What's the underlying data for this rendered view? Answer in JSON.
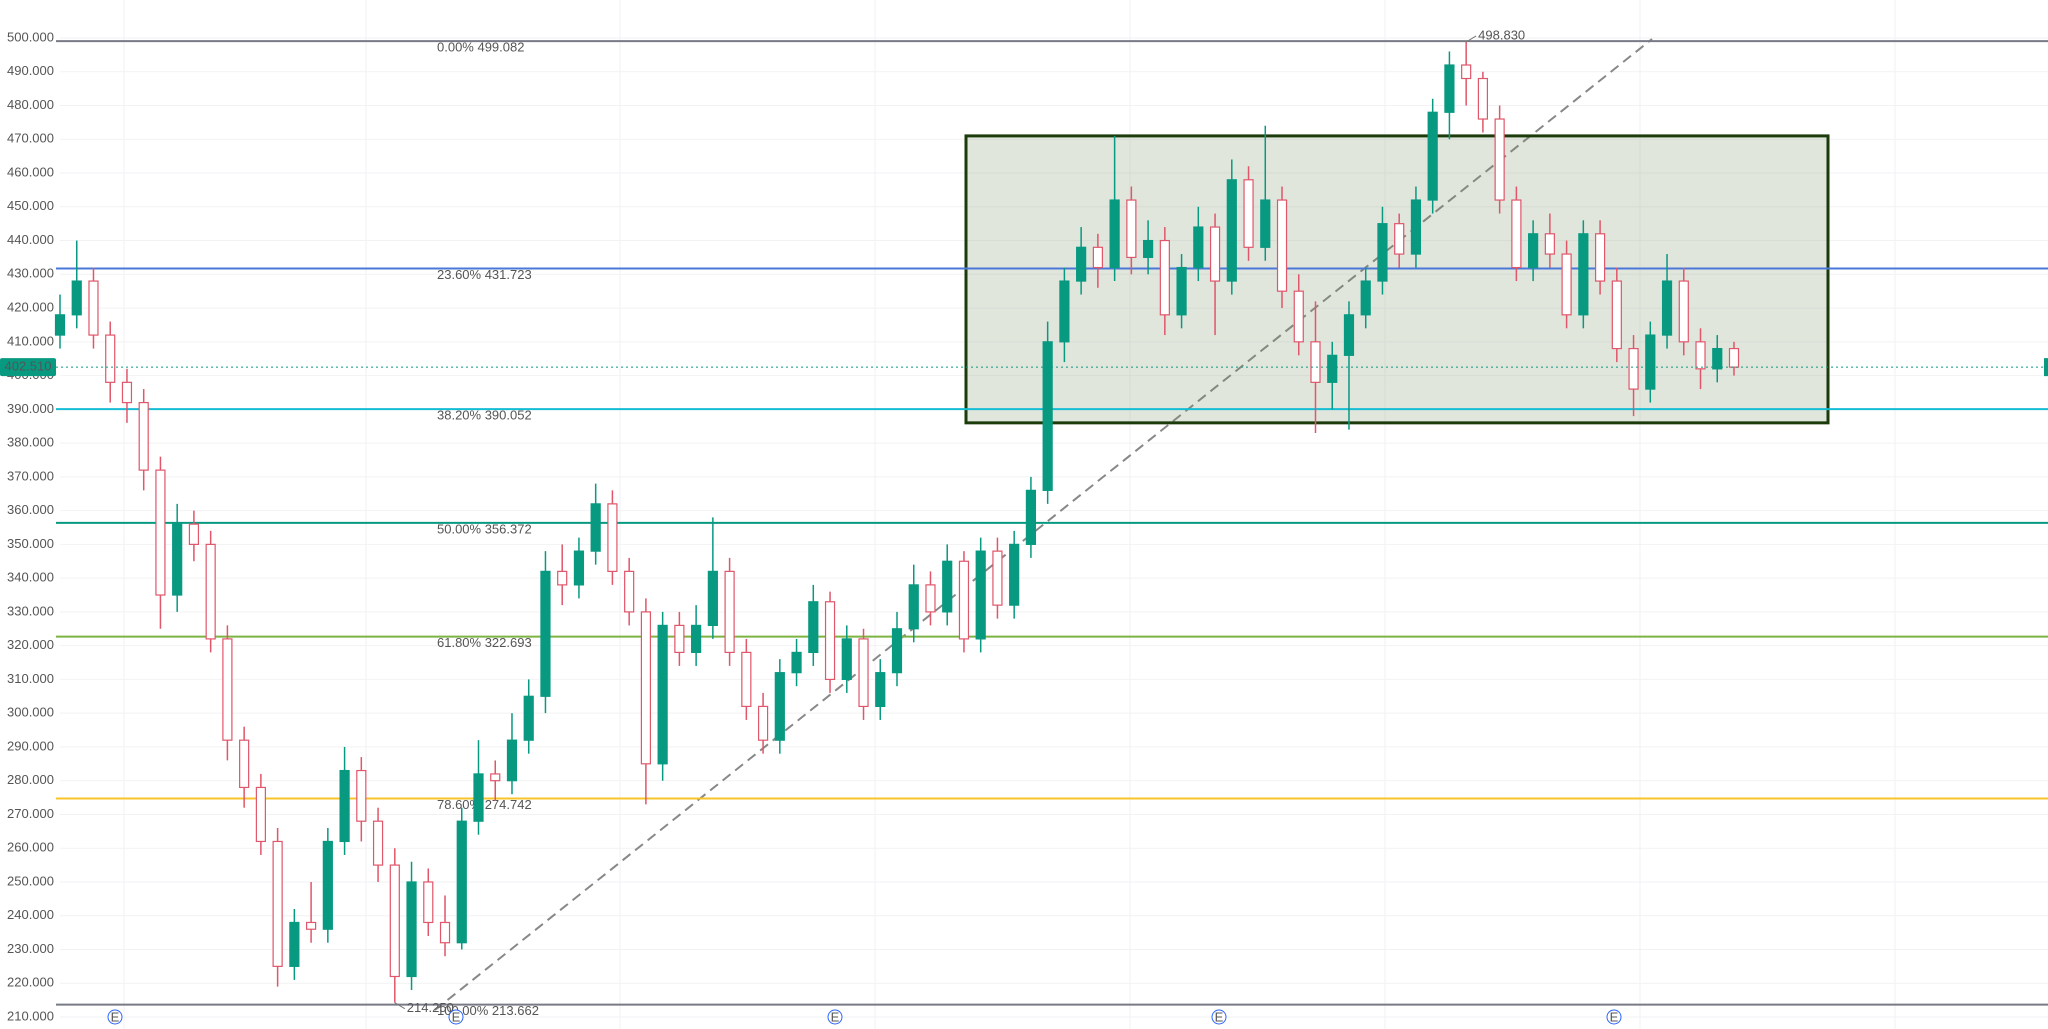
{
  "chart_data": {
    "type": "candlestick",
    "grid": true,
    "ylim": [
      210,
      500
    ],
    "yticks": [
      {
        "value": 210,
        "label": "210.000"
      },
      {
        "value": 220,
        "label": "220.000"
      },
      {
        "value": 230,
        "label": "230.000"
      },
      {
        "value": 240,
        "label": "240.000"
      },
      {
        "value": 250,
        "label": "250.000"
      },
      {
        "value": 260,
        "label": "260.000"
      },
      {
        "value": 270,
        "label": "270.000"
      },
      {
        "value": 280,
        "label": "280.000"
      },
      {
        "value": 290,
        "label": "290.000"
      },
      {
        "value": 300,
        "label": "300.000"
      },
      {
        "value": 310,
        "label": "310.000"
      },
      {
        "value": 320,
        "label": "320.000"
      },
      {
        "value": 330,
        "label": "330.000"
      },
      {
        "value": 340,
        "label": "340.000"
      },
      {
        "value": 350,
        "label": "350.000"
      },
      {
        "value": 360,
        "label": "360.000"
      },
      {
        "value": 370,
        "label": "370.000"
      },
      {
        "value": 380,
        "label": "380.000"
      },
      {
        "value": 390,
        "label": "390.000"
      },
      {
        "value": 400,
        "label": "400.000"
      },
      {
        "value": 410,
        "label": "410.000"
      },
      {
        "value": 420,
        "label": "420.000"
      },
      {
        "value": 430,
        "label": "430.000"
      },
      {
        "value": 440,
        "label": "440.000"
      },
      {
        "value": 450,
        "label": "450.000"
      },
      {
        "value": 460,
        "label": "460.000"
      },
      {
        "value": 470,
        "label": "470.000"
      },
      {
        "value": 480,
        "label": "480.000"
      },
      {
        "value": 490,
        "label": "490.000"
      },
      {
        "value": 500,
        "label": "500.000"
      }
    ],
    "up_color": "#089981",
    "down_color": "#e0566a",
    "values": [
      [
        412,
        424,
        408,
        418
      ],
      [
        418,
        440,
        414,
        428
      ],
      [
        428,
        432,
        408,
        412
      ],
      [
        412,
        416,
        392,
        398
      ],
      [
        398,
        402,
        386,
        392
      ],
      [
        392,
        396,
        366,
        372
      ],
      [
        372,
        376,
        325,
        335
      ],
      [
        335,
        362,
        330,
        356
      ],
      [
        356,
        360,
        345,
        350
      ],
      [
        350,
        354,
        318,
        322
      ],
      [
        322,
        326,
        286,
        292
      ],
      [
        292,
        296,
        272,
        278
      ],
      [
        278,
        282,
        258,
        262
      ],
      [
        262,
        266,
        219,
        225
      ],
      [
        225,
        242,
        221,
        238
      ],
      [
        238,
        250,
        232,
        236
      ],
      [
        236,
        266,
        232,
        262
      ],
      [
        262,
        290,
        258,
        283
      ],
      [
        283,
        287,
        262,
        268
      ],
      [
        268,
        272,
        250,
        255
      ],
      [
        255,
        260,
        214.25,
        222
      ],
      [
        222,
        256,
        218,
        250
      ],
      [
        250,
        254,
        234,
        238
      ],
      [
        238,
        246,
        228,
        232
      ],
      [
        232,
        272,
        230,
        268
      ],
      [
        268,
        292,
        264,
        282
      ],
      [
        282,
        286,
        274,
        280
      ],
      [
        280,
        300,
        276,
        292
      ],
      [
        292,
        310,
        288,
        305
      ],
      [
        305,
        348,
        300,
        342
      ],
      [
        342,
        350,
        332,
        338
      ],
      [
        338,
        352,
        334,
        348
      ],
      [
        348,
        368,
        344,
        362
      ],
      [
        362,
        366,
        338,
        342
      ],
      [
        342,
        346,
        326,
        330
      ],
      [
        330,
        334,
        273,
        285
      ],
      [
        285,
        330,
        280,
        326
      ],
      [
        326,
        330,
        314,
        318
      ],
      [
        318,
        332,
        314,
        326
      ],
      [
        326,
        358,
        322,
        342
      ],
      [
        342,
        346,
        314,
        318
      ],
      [
        318,
        322,
        298,
        302
      ],
      [
        302,
        306,
        288,
        292
      ],
      [
        292,
        316,
        288,
        312
      ],
      [
        312,
        322,
        308,
        318
      ],
      [
        318,
        338,
        314,
        333
      ],
      [
        333,
        336,
        306,
        310
      ],
      [
        310,
        326,
        306,
        322
      ],
      [
        322,
        325,
        298,
        302
      ],
      [
        302,
        316,
        298,
        312
      ],
      [
        312,
        330,
        308,
        325
      ],
      [
        325,
        344,
        321,
        338
      ],
      [
        338,
        342,
        326,
        330
      ],
      [
        330,
        350,
        326,
        345
      ],
      [
        345,
        348,
        318,
        322
      ],
      [
        322,
        352,
        318,
        348
      ],
      [
        348,
        352,
        328,
        332
      ],
      [
        332,
        354,
        328,
        350
      ],
      [
        350,
        370,
        346,
        366
      ],
      [
        366,
        416,
        362,
        410
      ],
      [
        410,
        432,
        404,
        428
      ],
      [
        428,
        444,
        424,
        438
      ],
      [
        438,
        442,
        426,
        432
      ],
      [
        432,
        471,
        428,
        452
      ],
      [
        452,
        456,
        430,
        435
      ],
      [
        435,
        446,
        430,
        440
      ],
      [
        440,
        444,
        412,
        418
      ],
      [
        418,
        436,
        414,
        432
      ],
      [
        432,
        450,
        428,
        444
      ],
      [
        444,
        448,
        412,
        428
      ],
      [
        428,
        464,
        424,
        458
      ],
      [
        458,
        462,
        434,
        438
      ],
      [
        438,
        474,
        434,
        452
      ],
      [
        452,
        456,
        420,
        425
      ],
      [
        425,
        430,
        406,
        410
      ],
      [
        410,
        422,
        383,
        398
      ],
      [
        398,
        410,
        390,
        406
      ],
      [
        406,
        422,
        384,
        418
      ],
      [
        418,
        432,
        414,
        428
      ],
      [
        428,
        450,
        424,
        445
      ],
      [
        445,
        448,
        432,
        436
      ],
      [
        436,
        456,
        432,
        452
      ],
      [
        452,
        482,
        448,
        478
      ],
      [
        478,
        496,
        470,
        492
      ],
      [
        492,
        498.83,
        480,
        488
      ],
      [
        488,
        490,
        472,
        476
      ],
      [
        476,
        480,
        448,
        452
      ],
      [
        452,
        456,
        428,
        432
      ],
      [
        432,
        446,
        428,
        442
      ],
      [
        442,
        448,
        432,
        436
      ],
      [
        436,
        440,
        414,
        418
      ],
      [
        418,
        446,
        414,
        442
      ],
      [
        442,
        446,
        424,
        428
      ],
      [
        428,
        432,
        404,
        408
      ],
      [
        408,
        412,
        388,
        396
      ],
      [
        396,
        416,
        392,
        412
      ],
      [
        412,
        436,
        408,
        428
      ],
      [
        428,
        432,
        406,
        410
      ],
      [
        410,
        414,
        396,
        402
      ],
      [
        402,
        412,
        398,
        408
      ],
      [
        408,
        410,
        400,
        402.51
      ]
    ],
    "fib_levels": [
      {
        "label": "0.00% 499.082",
        "value": 499.082,
        "color": "#787b86"
      },
      {
        "label": "23.60% 431.723",
        "value": 431.723,
        "color": "#4a78d8"
      },
      {
        "label": "38.20% 390.052",
        "value": 390.052,
        "color": "#14bcd4"
      },
      {
        "label": "50.00% 356.372",
        "value": 356.372,
        "color": "#089981"
      },
      {
        "label": "61.80% 322.693",
        "value": 322.693,
        "color": "#7cb342"
      },
      {
        "label": "78.60% 274.742",
        "value": 274.742,
        "color": "#f7c52a"
      },
      {
        "label": "100.00% 213.662",
        "value": 213.662,
        "color": "#787b86"
      }
    ],
    "box": {
      "high": 471,
      "low": 386,
      "color": "#1b3b0b"
    },
    "last_price": {
      "value": 402.51,
      "label": "402.510"
    },
    "extremes": [
      {
        "value": 498.83,
        "label": "498.830"
      },
      {
        "value": 214.25,
        "label": "214.250"
      }
    ],
    "events": [
      "E",
      "E",
      "E",
      "E",
      "E"
    ]
  }
}
